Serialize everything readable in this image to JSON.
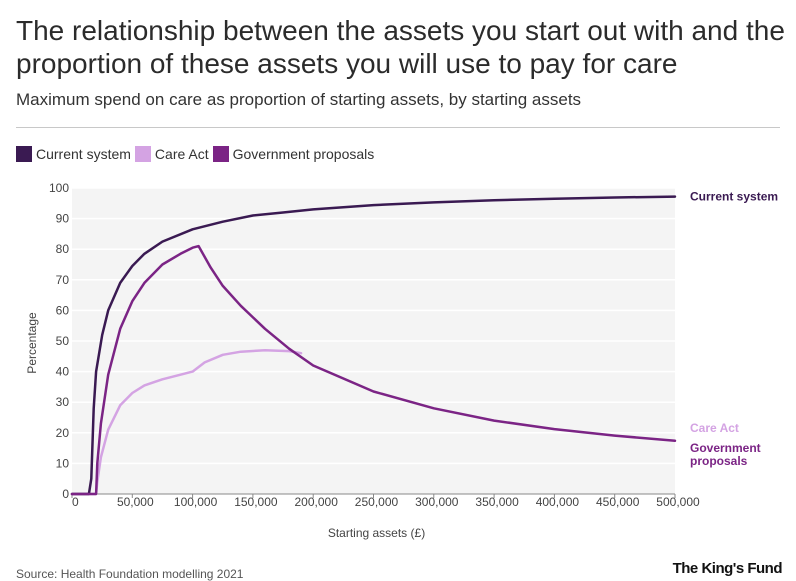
{
  "title": "The relationship between the assets you start out with and the proportion of these assets you will use to pay for care",
  "subtitle": "Maximum spend on care as proportion of starting assets, by starting assets",
  "source": "Source: Health Foundation modelling 2021",
  "logo": "The King's Fund",
  "colors": {
    "current_system": "#3a1a52",
    "care_act": "#d4a3e3",
    "government_proposals": "#7b2485",
    "plot_bg": "#f4f4f4",
    "grid": "#ffffff"
  },
  "chart_data": {
    "type": "line",
    "xlabel": "Starting assets (£)",
    "ylabel": "Percentage",
    "xlim": [
      0,
      500000
    ],
    "ylim": [
      0,
      100
    ],
    "x_ticks": [
      "0",
      "50,000",
      "100,000",
      "150,000",
      "200,000",
      "250,000",
      "300,000",
      "350,000",
      "400,000",
      "450,000",
      "500,000"
    ],
    "y_ticks": [
      "0",
      "10",
      "20",
      "30",
      "40",
      "50",
      "60",
      "70",
      "80",
      "90",
      "100"
    ],
    "grid": true,
    "legend_position": "top-left",
    "series": [
      {
        "name": "Current system",
        "end_label": "Current system",
        "color_key": "current_system",
        "points": [
          [
            0,
            0
          ],
          [
            14000,
            0
          ],
          [
            16000,
            5
          ],
          [
            18000,
            28
          ],
          [
            20000,
            40
          ],
          [
            25000,
            52
          ],
          [
            30000,
            60
          ],
          [
            40000,
            69
          ],
          [
            50000,
            74.5
          ],
          [
            60000,
            78.5
          ],
          [
            75000,
            82.5
          ],
          [
            100000,
            86.5
          ],
          [
            125000,
            89
          ],
          [
            150000,
            91
          ],
          [
            175000,
            92
          ],
          [
            200000,
            93
          ],
          [
            250000,
            94.4
          ],
          [
            300000,
            95.3
          ],
          [
            350000,
            96
          ],
          [
            400000,
            96.5
          ],
          [
            450000,
            96.9
          ],
          [
            500000,
            97.2
          ]
        ]
      },
      {
        "name": "Care Act",
        "end_label": "Care Act",
        "color_key": "care_act",
        "points": [
          [
            0,
            0
          ],
          [
            20000,
            0
          ],
          [
            21000,
            4
          ],
          [
            24000,
            12
          ],
          [
            30000,
            21
          ],
          [
            40000,
            29
          ],
          [
            50000,
            33
          ],
          [
            60000,
            35.5
          ],
          [
            75000,
            37.5
          ],
          [
            90000,
            39
          ],
          [
            100000,
            40
          ],
          [
            110000,
            43
          ],
          [
            125000,
            45.5
          ],
          [
            140000,
            46.5
          ],
          [
            160000,
            47
          ],
          [
            180000,
            46.7
          ],
          [
            190000,
            46
          ]
        ]
      },
      {
        "name": "Government proposals",
        "end_label": "Government proposals",
        "color_key": "government_proposals",
        "points": [
          [
            0,
            0
          ],
          [
            20000,
            0
          ],
          [
            21000,
            10
          ],
          [
            24000,
            23
          ],
          [
            30000,
            39
          ],
          [
            40000,
            54
          ],
          [
            50000,
            63
          ],
          [
            60000,
            69
          ],
          [
            75000,
            75
          ],
          [
            90000,
            78.5
          ],
          [
            100000,
            80.5
          ],
          [
            105000,
            81
          ],
          [
            115000,
            74
          ],
          [
            125000,
            68
          ],
          [
            140000,
            61.5
          ],
          [
            160000,
            54
          ],
          [
            180000,
            47.5
          ],
          [
            200000,
            42
          ],
          [
            250000,
            33.5
          ],
          [
            300000,
            28
          ],
          [
            350000,
            24
          ],
          [
            400000,
            21.2
          ],
          [
            450000,
            19.1
          ],
          [
            500000,
            17.4
          ]
        ]
      }
    ]
  }
}
